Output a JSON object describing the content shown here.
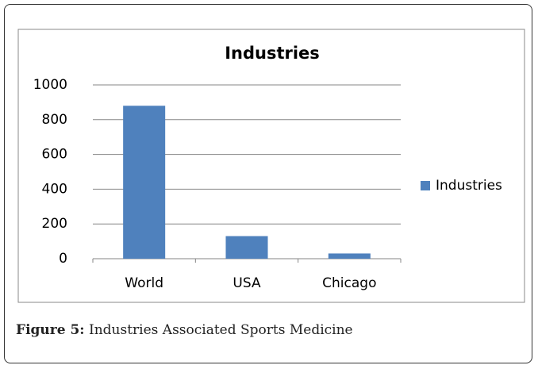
{
  "chart_data": {
    "type": "bar",
    "title": "Industries",
    "categories": [
      "World",
      "USA",
      "Chicago"
    ],
    "series": [
      {
        "name": "Industries",
        "color": "#4f81bd",
        "values": [
          880,
          130,
          30
        ]
      }
    ],
    "ylim": [
      0,
      1000
    ],
    "yticks": [
      0,
      200,
      400,
      600,
      800,
      1000
    ],
    "grid": true,
    "legend": "right"
  },
  "caption": {
    "label": "Figure 5:",
    "text": "Industries Associated Sports Medicine"
  }
}
